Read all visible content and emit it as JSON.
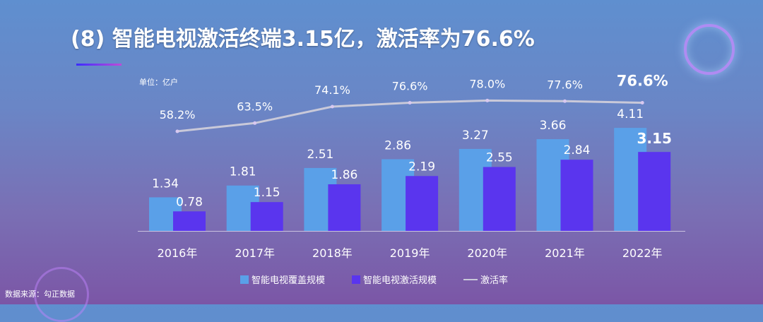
{
  "title": "(8) 智能电视激活终端3.15亿，激活率为76.6%",
  "unit_label": "单位：亿户",
  "source": "数据来源：勾正数据",
  "colors": {
    "coverage": "#5aa0e8",
    "activation": "#5a35ee",
    "rate_line": "#c9c9d9"
  },
  "chart_data": {
    "type": "bar",
    "categories": [
      "2016年",
      "2017年",
      "2018年",
      "2019年",
      "2020年",
      "2021年",
      "2022年"
    ],
    "series": [
      {
        "name": "智能电视覆盖规模",
        "values": [
          1.34,
          1.81,
          2.51,
          2.86,
          3.27,
          3.66,
          4.11
        ]
      },
      {
        "name": "智能电视激活规模",
        "values": [
          0.78,
          1.15,
          1.86,
          2.19,
          2.55,
          2.84,
          3.15
        ]
      }
    ],
    "line_series": {
      "name": "激活率",
      "values": [
        58.2,
        63.5,
        74.1,
        76.6,
        78.0,
        77.6,
        76.6
      ],
      "labels": [
        "58.2%",
        "63.5%",
        "74.1%",
        "76.6%",
        "78.0%",
        "77.6%",
        "76.6%"
      ]
    },
    "bar_labels": {
      "coverage": [
        "1.34",
        "1.81",
        "2.51",
        "2.86",
        "3.27",
        "3.66",
        "4.11"
      ],
      "activation": [
        "0.78",
        "1.15",
        "1.86",
        "2.19",
        "2.55",
        "2.84",
        "3.15"
      ]
    },
    "legend": [
      "智能电视覆盖规模",
      "智能电视激活规模",
      "激活率"
    ],
    "legend_position": "bottom",
    "grid": false
  }
}
